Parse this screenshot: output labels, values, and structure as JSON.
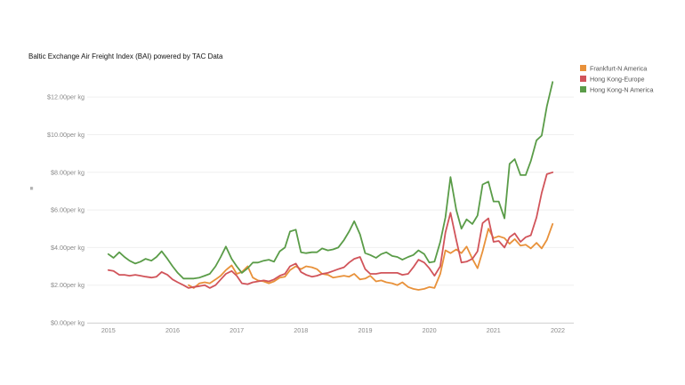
{
  "chart_data": {
    "type": "line",
    "title": "Baltic Exchange Air Freight Index (BAI) powered by TAC Data",
    "ylabel": "",
    "xlim": [
      2014.67,
      2022.25
    ],
    "ylim": [
      0,
      13
    ],
    "y_ticks": [
      {
        "value": 0,
        "label": "$0.00per kg"
      },
      {
        "value": 2,
        "label": "$2.00per kg"
      },
      {
        "value": 4,
        "label": "$4.00per kg"
      },
      {
        "value": 6,
        "label": "$6.00per kg"
      },
      {
        "value": 8,
        "label": "$8.00per kg"
      },
      {
        "value": 10,
        "label": "$10.00per kg"
      },
      {
        "value": 12,
        "label": "$12.00per kg"
      }
    ],
    "x_ticks": [
      {
        "value": 2015,
        "label": "2015"
      },
      {
        "value": 2016,
        "label": "2016"
      },
      {
        "value": 2017,
        "label": "2017"
      },
      {
        "value": 2018,
        "label": "2018"
      },
      {
        "value": 2019,
        "label": "2019"
      },
      {
        "value": 2020,
        "label": "2020"
      },
      {
        "value": 2021,
        "label": "2021"
      },
      {
        "value": 2022,
        "label": "2022"
      }
    ],
    "grid": "horizontal",
    "legend_position": "top-right",
    "series": [
      {
        "name": "Frankfurt-N America",
        "color": "#E8913A",
        "points": [
          [
            2016.25,
            2.0
          ],
          [
            2016.33,
            1.85
          ],
          [
            2016.42,
            2.1
          ],
          [
            2016.5,
            2.15
          ],
          [
            2016.58,
            2.1
          ],
          [
            2016.67,
            2.3
          ],
          [
            2016.75,
            2.5
          ],
          [
            2016.83,
            2.8
          ],
          [
            2016.92,
            3.05
          ],
          [
            2017.0,
            2.6
          ],
          [
            2017.08,
            2.7
          ],
          [
            2017.17,
            3.0
          ],
          [
            2017.25,
            2.4
          ],
          [
            2017.33,
            2.25
          ],
          [
            2017.42,
            2.2
          ],
          [
            2017.5,
            2.1
          ],
          [
            2017.58,
            2.2
          ],
          [
            2017.67,
            2.4
          ],
          [
            2017.75,
            2.45
          ],
          [
            2017.83,
            2.8
          ],
          [
            2017.92,
            3.0
          ],
          [
            2018.0,
            2.85
          ],
          [
            2018.08,
            3.0
          ],
          [
            2018.17,
            2.95
          ],
          [
            2018.25,
            2.85
          ],
          [
            2018.33,
            2.6
          ],
          [
            2018.42,
            2.55
          ],
          [
            2018.5,
            2.4
          ],
          [
            2018.58,
            2.45
          ],
          [
            2018.67,
            2.5
          ],
          [
            2018.75,
            2.45
          ],
          [
            2018.83,
            2.6
          ],
          [
            2018.92,
            2.3
          ],
          [
            2019.0,
            2.35
          ],
          [
            2019.08,
            2.5
          ],
          [
            2019.17,
            2.2
          ],
          [
            2019.25,
            2.25
          ],
          [
            2019.33,
            2.15
          ],
          [
            2019.42,
            2.1
          ],
          [
            2019.5,
            2.0
          ],
          [
            2019.58,
            2.15
          ],
          [
            2019.67,
            1.9
          ],
          [
            2019.75,
            1.8
          ],
          [
            2019.83,
            1.75
          ],
          [
            2019.92,
            1.8
          ],
          [
            2020.0,
            1.9
          ],
          [
            2020.08,
            1.85
          ],
          [
            2020.17,
            2.6
          ],
          [
            2020.25,
            3.85
          ],
          [
            2020.33,
            3.7
          ],
          [
            2020.42,
            3.9
          ],
          [
            2020.5,
            3.7
          ],
          [
            2020.58,
            4.05
          ],
          [
            2020.67,
            3.4
          ],
          [
            2020.75,
            2.9
          ],
          [
            2020.83,
            3.8
          ],
          [
            2020.92,
            5.0
          ],
          [
            2021.0,
            4.5
          ],
          [
            2021.08,
            4.6
          ],
          [
            2021.17,
            4.5
          ],
          [
            2021.25,
            4.2
          ],
          [
            2021.33,
            4.45
          ],
          [
            2021.42,
            4.1
          ],
          [
            2021.5,
            4.15
          ],
          [
            2021.58,
            3.95
          ],
          [
            2021.67,
            4.25
          ],
          [
            2021.75,
            3.95
          ],
          [
            2021.83,
            4.4
          ],
          [
            2021.92,
            5.25
          ]
        ]
      },
      {
        "name": "Hong Kong-Europe",
        "color": "#D1545A",
        "points": [
          [
            2015.0,
            2.8
          ],
          [
            2015.08,
            2.75
          ],
          [
            2015.17,
            2.55
          ],
          [
            2015.25,
            2.55
          ],
          [
            2015.33,
            2.5
          ],
          [
            2015.42,
            2.55
          ],
          [
            2015.5,
            2.5
          ],
          [
            2015.58,
            2.45
          ],
          [
            2015.67,
            2.4
          ],
          [
            2015.75,
            2.45
          ],
          [
            2015.83,
            2.7
          ],
          [
            2015.92,
            2.55
          ],
          [
            2016.0,
            2.3
          ],
          [
            2016.08,
            2.15
          ],
          [
            2016.17,
            2.0
          ],
          [
            2016.25,
            1.85
          ],
          [
            2016.33,
            1.9
          ],
          [
            2016.42,
            1.95
          ],
          [
            2016.5,
            2.0
          ],
          [
            2016.58,
            1.85
          ],
          [
            2016.67,
            2.0
          ],
          [
            2016.75,
            2.3
          ],
          [
            2016.83,
            2.6
          ],
          [
            2016.92,
            2.75
          ],
          [
            2017.0,
            2.5
          ],
          [
            2017.08,
            2.1
          ],
          [
            2017.17,
            2.05
          ],
          [
            2017.25,
            2.15
          ],
          [
            2017.33,
            2.2
          ],
          [
            2017.42,
            2.25
          ],
          [
            2017.5,
            2.2
          ],
          [
            2017.58,
            2.3
          ],
          [
            2017.67,
            2.5
          ],
          [
            2017.75,
            2.6
          ],
          [
            2017.83,
            3.0
          ],
          [
            2017.92,
            3.15
          ],
          [
            2018.0,
            2.7
          ],
          [
            2018.08,
            2.55
          ],
          [
            2018.17,
            2.45
          ],
          [
            2018.25,
            2.5
          ],
          [
            2018.33,
            2.6
          ],
          [
            2018.42,
            2.65
          ],
          [
            2018.5,
            2.75
          ],
          [
            2018.58,
            2.85
          ],
          [
            2018.67,
            2.95
          ],
          [
            2018.75,
            3.2
          ],
          [
            2018.83,
            3.4
          ],
          [
            2018.92,
            3.5
          ],
          [
            2019.0,
            2.85
          ],
          [
            2019.08,
            2.6
          ],
          [
            2019.17,
            2.6
          ],
          [
            2019.25,
            2.65
          ],
          [
            2019.33,
            2.65
          ],
          [
            2019.42,
            2.65
          ],
          [
            2019.5,
            2.65
          ],
          [
            2019.58,
            2.55
          ],
          [
            2019.67,
            2.6
          ],
          [
            2019.75,
            2.95
          ],
          [
            2019.83,
            3.35
          ],
          [
            2019.92,
            3.2
          ],
          [
            2020.0,
            2.9
          ],
          [
            2020.08,
            2.5
          ],
          [
            2020.17,
            3.0
          ],
          [
            2020.25,
            4.8
          ],
          [
            2020.33,
            5.85
          ],
          [
            2020.42,
            4.4
          ],
          [
            2020.5,
            3.2
          ],
          [
            2020.58,
            3.25
          ],
          [
            2020.67,
            3.4
          ],
          [
            2020.75,
            3.8
          ],
          [
            2020.83,
            5.3
          ],
          [
            2020.92,
            5.55
          ],
          [
            2021.0,
            4.3
          ],
          [
            2021.08,
            4.35
          ],
          [
            2021.17,
            4.0
          ],
          [
            2021.25,
            4.55
          ],
          [
            2021.33,
            4.75
          ],
          [
            2021.42,
            4.3
          ],
          [
            2021.5,
            4.55
          ],
          [
            2021.58,
            4.65
          ],
          [
            2021.67,
            5.6
          ],
          [
            2021.75,
            6.9
          ],
          [
            2021.83,
            7.9
          ],
          [
            2021.92,
            8.0
          ]
        ]
      },
      {
        "name": "Hong Kong-N America",
        "color": "#5A9C48",
        "points": [
          [
            2015.0,
            3.65
          ],
          [
            2015.08,
            3.45
          ],
          [
            2015.17,
            3.75
          ],
          [
            2015.25,
            3.5
          ],
          [
            2015.33,
            3.3
          ],
          [
            2015.42,
            3.15
          ],
          [
            2015.5,
            3.25
          ],
          [
            2015.58,
            3.4
          ],
          [
            2015.67,
            3.3
          ],
          [
            2015.75,
            3.5
          ],
          [
            2015.83,
            3.8
          ],
          [
            2015.92,
            3.4
          ],
          [
            2016.0,
            3.0
          ],
          [
            2016.08,
            2.65
          ],
          [
            2016.17,
            2.35
          ],
          [
            2016.25,
            2.35
          ],
          [
            2016.33,
            2.35
          ],
          [
            2016.42,
            2.4
          ],
          [
            2016.5,
            2.5
          ],
          [
            2016.58,
            2.6
          ],
          [
            2016.67,
            3.0
          ],
          [
            2016.75,
            3.5
          ],
          [
            2016.83,
            4.05
          ],
          [
            2016.92,
            3.4
          ],
          [
            2017.0,
            3.0
          ],
          [
            2017.08,
            2.65
          ],
          [
            2017.17,
            2.9
          ],
          [
            2017.25,
            3.2
          ],
          [
            2017.33,
            3.2
          ],
          [
            2017.42,
            3.3
          ],
          [
            2017.5,
            3.35
          ],
          [
            2017.58,
            3.25
          ],
          [
            2017.67,
            3.8
          ],
          [
            2017.75,
            4.0
          ],
          [
            2017.83,
            4.85
          ],
          [
            2017.92,
            4.95
          ],
          [
            2018.0,
            3.75
          ],
          [
            2018.08,
            3.7
          ],
          [
            2018.17,
            3.75
          ],
          [
            2018.25,
            3.75
          ],
          [
            2018.33,
            3.95
          ],
          [
            2018.42,
            3.85
          ],
          [
            2018.5,
            3.9
          ],
          [
            2018.58,
            4.0
          ],
          [
            2018.67,
            4.4
          ],
          [
            2018.75,
            4.85
          ],
          [
            2018.83,
            5.4
          ],
          [
            2018.92,
            4.7
          ],
          [
            2019.0,
            3.7
          ],
          [
            2019.08,
            3.6
          ],
          [
            2019.17,
            3.45
          ],
          [
            2019.25,
            3.65
          ],
          [
            2019.33,
            3.75
          ],
          [
            2019.42,
            3.55
          ],
          [
            2019.5,
            3.5
          ],
          [
            2019.58,
            3.35
          ],
          [
            2019.67,
            3.5
          ],
          [
            2019.75,
            3.6
          ],
          [
            2019.83,
            3.85
          ],
          [
            2019.92,
            3.65
          ],
          [
            2020.0,
            3.2
          ],
          [
            2020.08,
            3.25
          ],
          [
            2020.17,
            4.3
          ],
          [
            2020.25,
            5.6
          ],
          [
            2020.33,
            7.75
          ],
          [
            2020.42,
            6.0
          ],
          [
            2020.5,
            5.0
          ],
          [
            2020.58,
            5.5
          ],
          [
            2020.67,
            5.25
          ],
          [
            2020.75,
            5.7
          ],
          [
            2020.83,
            7.35
          ],
          [
            2020.92,
            7.5
          ],
          [
            2021.0,
            6.45
          ],
          [
            2021.08,
            6.45
          ],
          [
            2021.17,
            5.55
          ],
          [
            2021.25,
            8.45
          ],
          [
            2021.33,
            8.7
          ],
          [
            2021.42,
            7.85
          ],
          [
            2021.5,
            7.85
          ],
          [
            2021.58,
            8.6
          ],
          [
            2021.67,
            9.7
          ],
          [
            2021.75,
            9.95
          ],
          [
            2021.83,
            11.5
          ],
          [
            2021.92,
            12.8
          ]
        ]
      }
    ]
  }
}
